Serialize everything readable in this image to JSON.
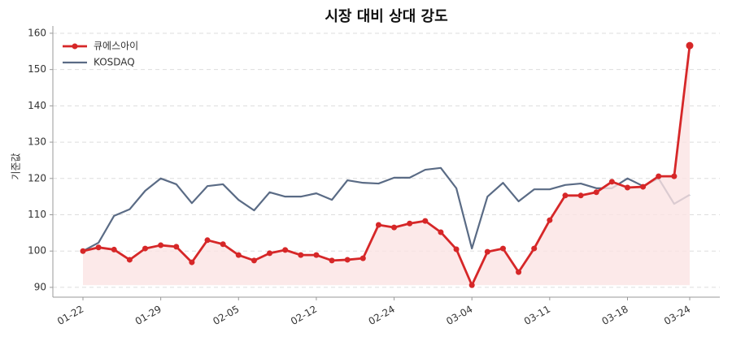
{
  "chart_data": {
    "type": "line",
    "title": "시장 대비 상대 강도",
    "y_label": "기준값",
    "categories": [
      "01-22",
      null,
      null,
      null,
      null,
      "01-29",
      null,
      null,
      null,
      null,
      "02-05",
      null,
      null,
      null,
      null,
      "02-12",
      null,
      null,
      null,
      null,
      "02-24",
      null,
      null,
      null,
      null,
      "03-04",
      null,
      null,
      null,
      null,
      "03-11",
      null,
      null,
      null,
      null,
      "03-18",
      null,
      null,
      null,
      "03-24"
    ],
    "series": [
      {
        "name": "큐에스아이",
        "color": "#d62728",
        "markers": true,
        "fill": "#fbe3e3",
        "values": [
          100,
          101,
          100.4,
          97.6,
          100.7,
          101.6,
          101.2,
          96.9,
          103,
          101.9,
          98.9,
          97.4,
          99.4,
          100.3,
          98.9,
          98.9,
          97.4,
          97.6,
          98,
          107.2,
          106.5,
          107.6,
          108.3,
          105.2,
          100.5,
          90.6,
          99.8,
          100.7,
          94.2,
          100.7,
          108.5,
          115.3,
          115.3,
          116.2,
          119.1,
          117.5,
          117.7,
          120.6,
          120.6,
          156.6
        ]
      },
      {
        "name": "KOSDAQ",
        "color": "#5a6b85",
        "markers": false,
        "values": [
          100,
          102.3,
          109.7,
          111.5,
          116.6,
          120,
          118.4,
          113.2,
          117.9,
          118.4,
          114.1,
          111.2,
          116.2,
          115,
          115,
          115.9,
          114.1,
          119.5,
          118.8,
          118.6,
          120.2,
          120.2,
          122.4,
          122.9,
          117.3,
          100.7,
          115,
          118.8,
          113.7,
          117,
          117,
          118.2,
          118.6,
          117.3,
          117.3,
          120,
          117.9,
          120,
          113,
          115.5
        ]
      }
    ],
    "ylim": [
      87.3,
      162
    ],
    "yticks": [
      90,
      100,
      110,
      120,
      130,
      140,
      150,
      160
    ],
    "grid": true,
    "legend": "upper-left"
  }
}
